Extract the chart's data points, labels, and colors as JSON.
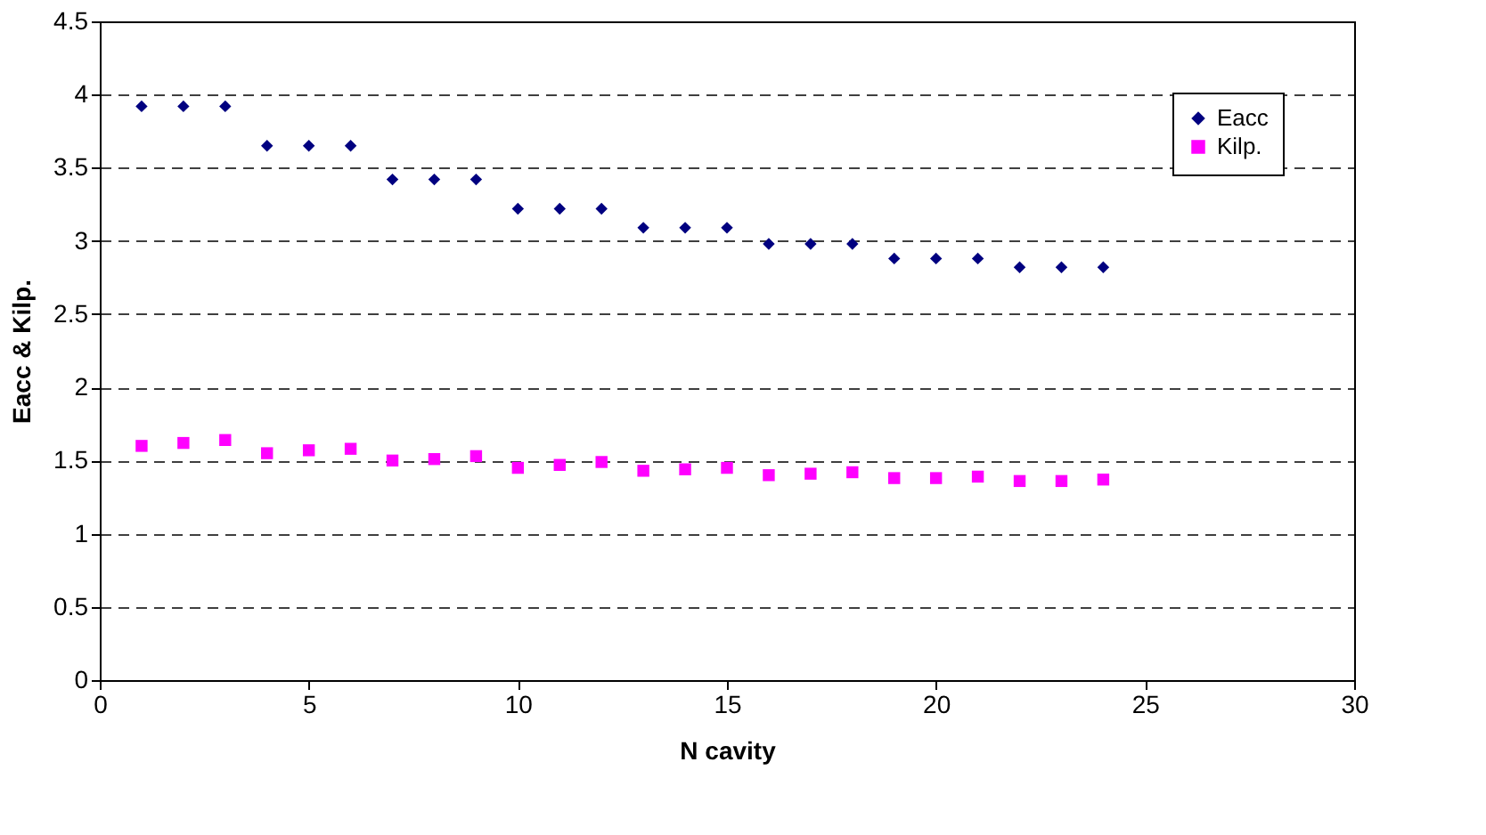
{
  "chart_data": {
    "type": "scatter",
    "xlabel": "N cavity",
    "ylabel": "Eacc  &  Kilp.",
    "x": [
      1,
      2,
      3,
      4,
      5,
      6,
      7,
      8,
      9,
      10,
      11,
      12,
      13,
      14,
      15,
      16,
      17,
      18,
      19,
      20,
      21,
      22,
      23,
      24
    ],
    "series": [
      {
        "name": "Eacc",
        "color": "#000080",
        "marker": "diamond",
        "values": [
          3.92,
          3.92,
          3.92,
          3.65,
          3.65,
          3.65,
          3.42,
          3.42,
          3.42,
          3.22,
          3.22,
          3.22,
          3.09,
          3.09,
          3.09,
          2.98,
          2.98,
          2.98,
          2.88,
          2.88,
          2.88,
          2.82,
          2.82,
          2.82
        ]
      },
      {
        "name": "Kilp.",
        "color": "#ff00ff",
        "marker": "square",
        "values": [
          1.6,
          1.62,
          1.64,
          1.55,
          1.57,
          1.58,
          1.5,
          1.51,
          1.53,
          1.45,
          1.47,
          1.49,
          1.43,
          1.44,
          1.45,
          1.4,
          1.41,
          1.42,
          1.38,
          1.38,
          1.39,
          1.36,
          1.36,
          1.37
        ]
      }
    ],
    "xlim": [
      0,
      30
    ],
    "xticks": [
      0,
      5,
      10,
      15,
      20,
      25,
      30
    ],
    "ylim": [
      0,
      4.5
    ],
    "yticks": [
      0,
      0.5,
      1,
      1.5,
      2,
      2.5,
      3,
      3.5,
      4,
      4.5
    ],
    "grid": "y",
    "legend": "top right"
  }
}
